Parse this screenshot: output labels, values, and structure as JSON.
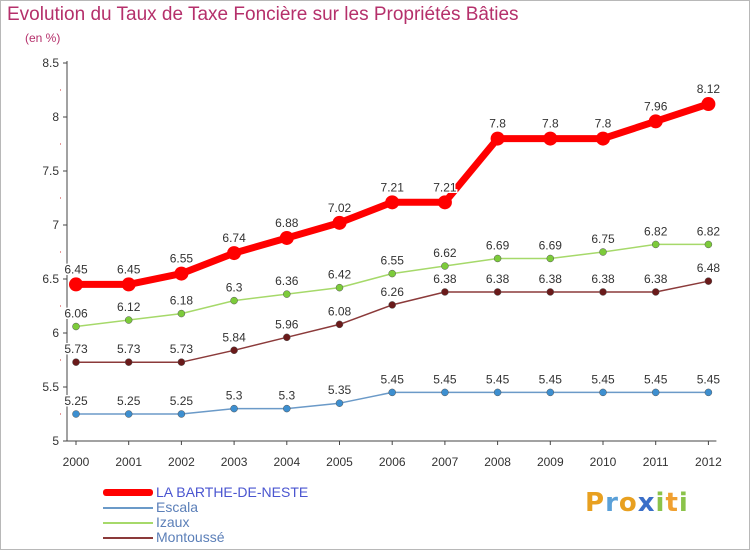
{
  "title": "Evolution du Taux de Taxe Foncière sur les Propriétés Bâties",
  "subtitle": "(en %)",
  "logo": {
    "text": "Proxiti",
    "letters": [
      {
        "ch": "P",
        "color": "#e8a020"
      },
      {
        "ch": "r",
        "color": "#5aa0d8"
      },
      {
        "ch": "o",
        "color": "#e8a020"
      },
      {
        "ch": "x",
        "color": "#3a6fc8"
      },
      {
        "ch": "i",
        "color": "#8bc34a"
      },
      {
        "ch": "t",
        "color": "#f0a030"
      },
      {
        "ch": "i",
        "color": "#8bc34a"
      }
    ]
  },
  "chart_data": {
    "type": "line",
    "title": "Evolution du Taux de Taxe Foncière sur les Propriétés Bâties",
    "ylabel": "(en %)",
    "xlabel": "",
    "categories": [
      "2000",
      "2001",
      "2002",
      "2003",
      "2004",
      "2005",
      "2006",
      "2007",
      "2008",
      "2009",
      "2010",
      "2011",
      "2012"
    ],
    "ylim": [
      5,
      8.5
    ],
    "yticks": [
      5,
      5.5,
      6,
      6.5,
      7,
      7.5,
      8,
      8.5
    ],
    "ytick_labels": [
      "5",
      "5.5",
      "6",
      "6.5",
      "7",
      "7.5",
      "8",
      "8.5"
    ],
    "grid": false,
    "legend_position": "bottom-left",
    "series": [
      {
        "name": "LA BARTHE-DE-NESTE",
        "color": "#ff0000",
        "marker_color": "#ff0000",
        "label_color": "#ffffff",
        "legend_color": "#4a55d0",
        "width": 7,
        "marker_r": 7,
        "values": [
          6.45,
          6.45,
          6.55,
          6.74,
          6.88,
          7.02,
          7.21,
          7.21,
          7.8,
          7.8,
          7.8,
          7.96,
          8.12
        ],
        "labels": [
          "6.45",
          "6.45",
          "6.55",
          "6.74",
          "6.88",
          "7.02",
          "7.21",
          "7.21",
          "7.8",
          "7.8",
          "7.8",
          "7.96",
          "8.12"
        ]
      },
      {
        "name": "Escala",
        "color": "#6b9ac8",
        "marker_color": "#3d8fd0",
        "label_color": "#ffffff",
        "legend_color": "#5b7fb8",
        "width": 1.5,
        "marker_r": 3.5,
        "values": [
          5.25,
          5.25,
          5.25,
          5.3,
          5.3,
          5.35,
          5.45,
          5.45,
          5.45,
          5.45,
          5.45,
          5.45,
          5.45
        ],
        "labels": [
          "5.25",
          "5.25",
          "5.25",
          "5.3",
          "5.3",
          "5.35",
          "5.45",
          "5.45",
          "5.45",
          "5.45",
          "5.45",
          "5.45",
          "5.45"
        ]
      },
      {
        "name": "Izaux",
        "color": "#a6d96a",
        "marker_color": "#7ccb3a",
        "label_color": "#ffffff",
        "legend_color": "#5b7fb8",
        "width": 1.5,
        "marker_r": 3.5,
        "values": [
          6.06,
          6.12,
          6.18,
          6.3,
          6.36,
          6.42,
          6.55,
          6.62,
          6.69,
          6.69,
          6.75,
          6.82,
          6.82
        ],
        "labels": [
          "6.06",
          "6.12",
          "6.18",
          "6.3",
          "6.36",
          "6.42",
          "6.55",
          "6.62",
          "6.69",
          "6.69",
          "6.75",
          "6.82",
          "6.82"
        ]
      },
      {
        "name": "Montoussé",
        "color": "#8b3a3a",
        "marker_color": "#6a1a1a",
        "label_color": "#ffffff",
        "legend_color": "#5b7fb8",
        "width": 1.5,
        "marker_r": 3.5,
        "values": [
          5.73,
          5.73,
          5.73,
          5.84,
          5.96,
          6.08,
          6.26,
          6.38,
          6.38,
          6.38,
          6.38,
          6.38,
          6.48
        ],
        "labels": [
          "5.73",
          "5.73",
          "5.73",
          "5.84",
          "5.96",
          "6.08",
          "6.26",
          "6.38",
          "6.38",
          "6.38",
          "6.38",
          "6.38",
          "6.48"
        ]
      }
    ]
  }
}
